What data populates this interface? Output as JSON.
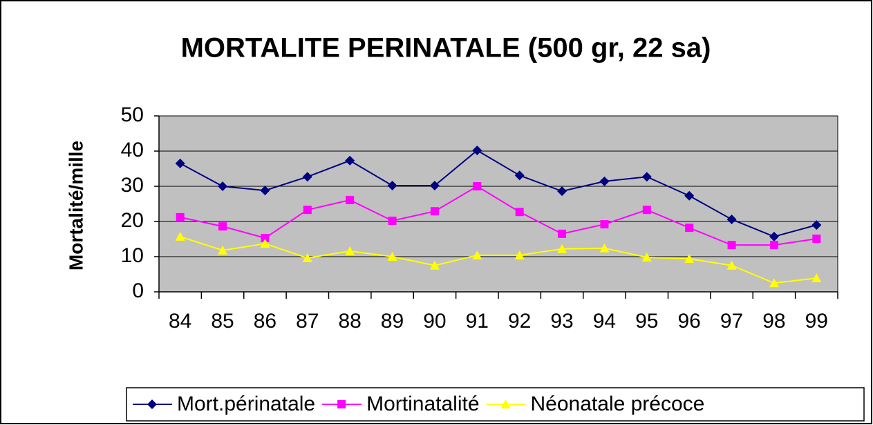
{
  "chart_data": {
    "type": "line",
    "title": "MORTALITE PERINATALE (500 gr, 22 sa)",
    "y_label": "Mortalité/mille",
    "categories": [
      "84",
      "85",
      "86",
      "87",
      "88",
      "89",
      "90",
      "91",
      "92",
      "93",
      "94",
      "95",
      "96",
      "97",
      "98",
      "99"
    ],
    "series": [
      {
        "name": "Mort.périnatale",
        "color": "#000080",
        "marker": "diamond",
        "values": [
          36.5,
          30,
          28.8,
          32.7,
          37.3,
          30.2,
          30.2,
          40.2,
          33.1,
          28.6,
          31.4,
          32.7,
          27.3,
          20.6,
          15.7,
          19
        ]
      },
      {
        "name": "Mortinatalité",
        "color": "#ff00ff",
        "marker": "square",
        "values": [
          21.2,
          18.6,
          15.3,
          23.3,
          26.1,
          20.2,
          22.9,
          30,
          22.7,
          16.5,
          19.2,
          23.3,
          18.2,
          13.3,
          13.3,
          15.1
        ]
      },
      {
        "name": "Néonatale précoce",
        "color": "#ffff00",
        "marker": "triangle",
        "values": [
          15.7,
          11.8,
          13.7,
          9.6,
          11.6,
          10,
          7.5,
          10.4,
          10.4,
          12.2,
          12.4,
          9.8,
          9.4,
          7.5,
          2.5,
          3.9
        ]
      }
    ],
    "ylim": [
      0,
      50
    ],
    "yticks": [
      0,
      10,
      20,
      30,
      40,
      50
    ],
    "grid": true,
    "legend": "bottom"
  }
}
